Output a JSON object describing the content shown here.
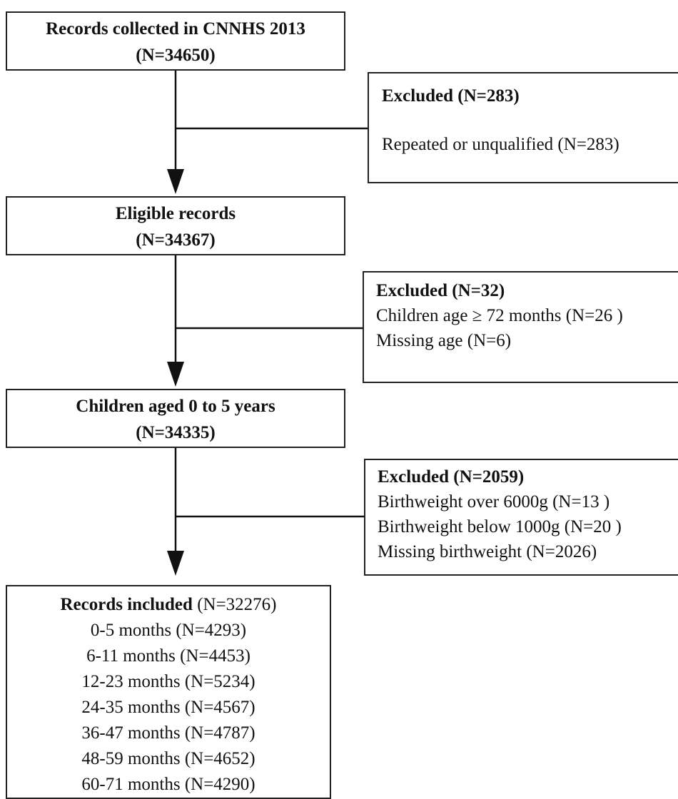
{
  "steps": [
    {
      "title": "Records collected in CNNHS 2013",
      "count": "(N=34650)"
    },
    {
      "title": "Eligible records",
      "count": "(N=34367)"
    },
    {
      "title": "Children aged 0 to 5 years",
      "count": "(N=34335)"
    }
  ],
  "exclusions": [
    {
      "title": "Excluded (N=283)",
      "reasons": [
        "Repeated or unqualified (N=283)"
      ]
    },
    {
      "title": "Excluded (N=32)",
      "reasons": [
        "Children age ≥ 72 months (N=26 )",
        "Missing age (N=6)"
      ]
    },
    {
      "title": "Excluded (N=2059)",
      "reasons": [
        "Birthweight over 6000g (N=13 )",
        "Birthweight below 1000g (N=20 )",
        "Missing birthweight (N=2026)"
      ]
    }
  ],
  "final": {
    "title": "Records included",
    "count": " (N=32276)",
    "groups": [
      "0-5 months (N=4293)",
      "6-11 months (N=4453)",
      "12-23 months (N=5234)",
      "24-35 months (N=4567)",
      "36-47 months (N=4787)",
      "48-59 months (N=4652)",
      "60-71 months (N=4290)"
    ]
  }
}
